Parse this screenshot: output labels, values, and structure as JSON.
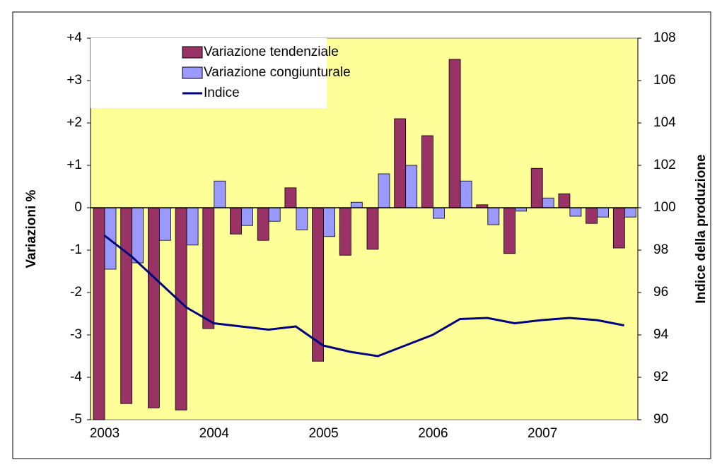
{
  "chart_data": {
    "type": "bar",
    "categories": [
      "2003",
      null,
      null,
      null,
      "2004",
      null,
      null,
      null,
      "2005",
      null,
      null,
      null,
      "2006",
      null,
      null,
      null,
      "2007",
      null,
      null,
      null
    ],
    "series": [
      {
        "name": "Variazione tendenziale",
        "color": "#993366",
        "values": [
          -5.0,
          -4.62,
          -4.72,
          -4.77,
          -2.85,
          -0.62,
          -0.77,
          0.47,
          -3.62,
          -1.12,
          -0.98,
          2.1,
          1.7,
          3.5,
          0.07,
          -1.08,
          0.93,
          0.33,
          -0.37,
          -0.95
        ]
      },
      {
        "name": "Variazione congiunturale",
        "color": "#9999ff",
        "values": [
          -1.45,
          -1.3,
          -0.77,
          -0.88,
          0.63,
          -0.42,
          -0.32,
          -0.52,
          -0.68,
          0.13,
          0.8,
          1.0,
          -0.25,
          0.63,
          -0.4,
          -0.08,
          0.23,
          -0.2,
          -0.22,
          -0.22
        ]
      },
      {
        "name": "Indice",
        "color": "#000080",
        "type": "line",
        "axis": "y2",
        "values": [
          98.7,
          97.7,
          96.5,
          95.3,
          94.55,
          94.4,
          94.25,
          94.4,
          93.5,
          93.2,
          93.0,
          93.5,
          94.0,
          94.75,
          94.8,
          94.55,
          94.7,
          94.8,
          94.7,
          94.45
        ]
      }
    ],
    "y_label": "Variazioni %",
    "y2_label": "Indice della produzione",
    "ylim": [
      -5,
      4
    ],
    "yticks": [
      -5,
      -4,
      -3,
      -2,
      -1,
      0,
      {
        "value": 1,
        "label": "+1"
      },
      {
        "value": 2,
        "label": "+2"
      },
      {
        "value": 3,
        "label": "+3"
      },
      {
        "value": 4,
        "label": "+4"
      }
    ],
    "y2lim": [
      90,
      108
    ],
    "y2ticks": [
      90,
      92,
      94,
      96,
      98,
      100,
      102,
      104,
      106,
      108
    ],
    "background": "#ffff99",
    "legend": "top-left"
  }
}
